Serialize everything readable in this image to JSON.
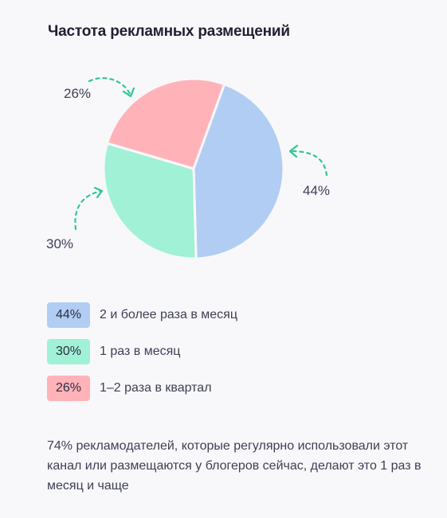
{
  "chart_data": {
    "type": "pie",
    "title": "Частота рекламных размещений",
    "slices": [
      {
        "label": "2 и более раза в месяц",
        "value": 44,
        "display": "44%",
        "color": "#b1cdf3"
      },
      {
        "label": "1 раз в месяц",
        "value": 30,
        "display": "30%",
        "color": "#a0f1d6"
      },
      {
        "label": "1–2 раза в квартал",
        "value": 26,
        "display": "26%",
        "color": "#ffb3b9"
      }
    ],
    "annotation_color": "#2ec88f"
  },
  "note": "74% рекламодателей, которые регулярно использовали этот канал или размещаются у блогеров сейчас, делают это 1 раз в месяц и чаще"
}
